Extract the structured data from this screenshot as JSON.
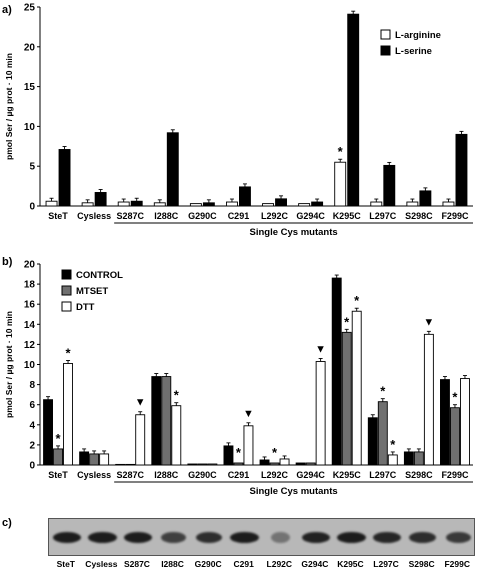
{
  "panel_labels": {
    "a": "a)",
    "b": "b)",
    "c": "c)"
  },
  "chart_data": [
    {
      "type": "bar",
      "panel": "a)",
      "ylabel": "pmol Ser / µg prot · 10 min",
      "xlabel": "Single Cys mutants",
      "ylim": [
        0,
        25
      ],
      "yticks": [
        0,
        5,
        10,
        15,
        20,
        25
      ],
      "grid": false,
      "legend_position": "top-right",
      "categories": [
        "SteT",
        "Cysless",
        "S287C",
        "I288C",
        "G290C",
        "C291",
        "L292C",
        "G294C",
        "K295C",
        "L297C",
        "S298C",
        "F299C"
      ],
      "series": [
        {
          "name": "L-arginine",
          "color": "#ffffff",
          "values": [
            0.6,
            0.4,
            0.5,
            0.4,
            0.3,
            0.5,
            0.3,
            0.3,
            5.5,
            0.5,
            0.5,
            0.5
          ]
        },
        {
          "name": "L-serine",
          "color": "#000000",
          "values": [
            7.1,
            1.7,
            0.6,
            9.2,
            0.4,
            2.4,
            0.9,
            0.5,
            24.1,
            5.1,
            1.9,
            9.0
          ]
        }
      ],
      "annotations": [
        {
          "text": "*",
          "category": "K295C",
          "series": "L-arginine"
        }
      ]
    },
    {
      "type": "bar",
      "panel": "b)",
      "ylabel": "pmol Ser / µg prot · 10 min",
      "xlabel": "Single Cys mutants",
      "ylim": [
        0,
        20
      ],
      "yticks": [
        0,
        2,
        4,
        6,
        8,
        10,
        12,
        14,
        16,
        18,
        20
      ],
      "grid": false,
      "legend_position": "top-left",
      "categories": [
        "SteT",
        "Cysless",
        "S287C",
        "I288C",
        "G290C",
        "C291",
        "L292C",
        "G294C",
        "K295C",
        "L297C",
        "S298C",
        "F299C"
      ],
      "series": [
        {
          "name": "CONTROL",
          "color": "#000000",
          "values": [
            6.5,
            1.3,
            0.05,
            8.8,
            0.1,
            1.9,
            0.5,
            0.2,
            18.6,
            4.7,
            1.3,
            8.5
          ]
        },
        {
          "name": "MTSET",
          "color": "#707070",
          "values": [
            1.6,
            1.1,
            0.05,
            8.8,
            0.1,
            0.2,
            0.2,
            0.2,
            13.2,
            6.3,
            1.3,
            5.7
          ]
        },
        {
          "name": "DTT",
          "color": "#ffffff",
          "values": [
            10.1,
            1.1,
            5.0,
            5.9,
            0.1,
            3.9,
            0.6,
            10.3,
            15.3,
            1.0,
            13.0,
            8.6
          ]
        }
      ],
      "annotations": [
        {
          "text": "*",
          "category": "SteT",
          "series": "MTSET"
        },
        {
          "text": "*",
          "category": "SteT",
          "series": "DTT"
        },
        {
          "text": "▼",
          "category": "S287C",
          "series": "DTT"
        },
        {
          "text": "*",
          "category": "I288C",
          "series": "DTT"
        },
        {
          "text": "*",
          "category": "C291",
          "series": "MTSET"
        },
        {
          "text": "▼",
          "category": "C291",
          "series": "DTT"
        },
        {
          "text": "*",
          "category": "L292C",
          "series": "MTSET"
        },
        {
          "text": "▼",
          "category": "G294C",
          "series": "DTT"
        },
        {
          "text": "*",
          "category": "K295C",
          "series": "MTSET"
        },
        {
          "text": "*",
          "category": "K295C",
          "series": "DTT"
        },
        {
          "text": "*",
          "category": "L297C",
          "series": "MTSET"
        },
        {
          "text": "*",
          "category": "L297C",
          "series": "DTT"
        },
        {
          "text": "▼",
          "category": "S298C",
          "series": "DTT"
        },
        {
          "text": "*",
          "category": "F299C",
          "series": "MTSET"
        }
      ]
    }
  ],
  "blot": {
    "lanes": [
      "SteT",
      "Cysless",
      "S287C",
      "I288C",
      "G290C",
      "C291",
      "L292C",
      "G294C",
      "K295C",
      "L297C",
      "S298C",
      "F299C"
    ],
    "intensity": [
      1.0,
      1.0,
      1.0,
      0.7,
      0.85,
      1.0,
      0.25,
      0.95,
      1.0,
      0.9,
      0.85,
      0.75
    ]
  }
}
